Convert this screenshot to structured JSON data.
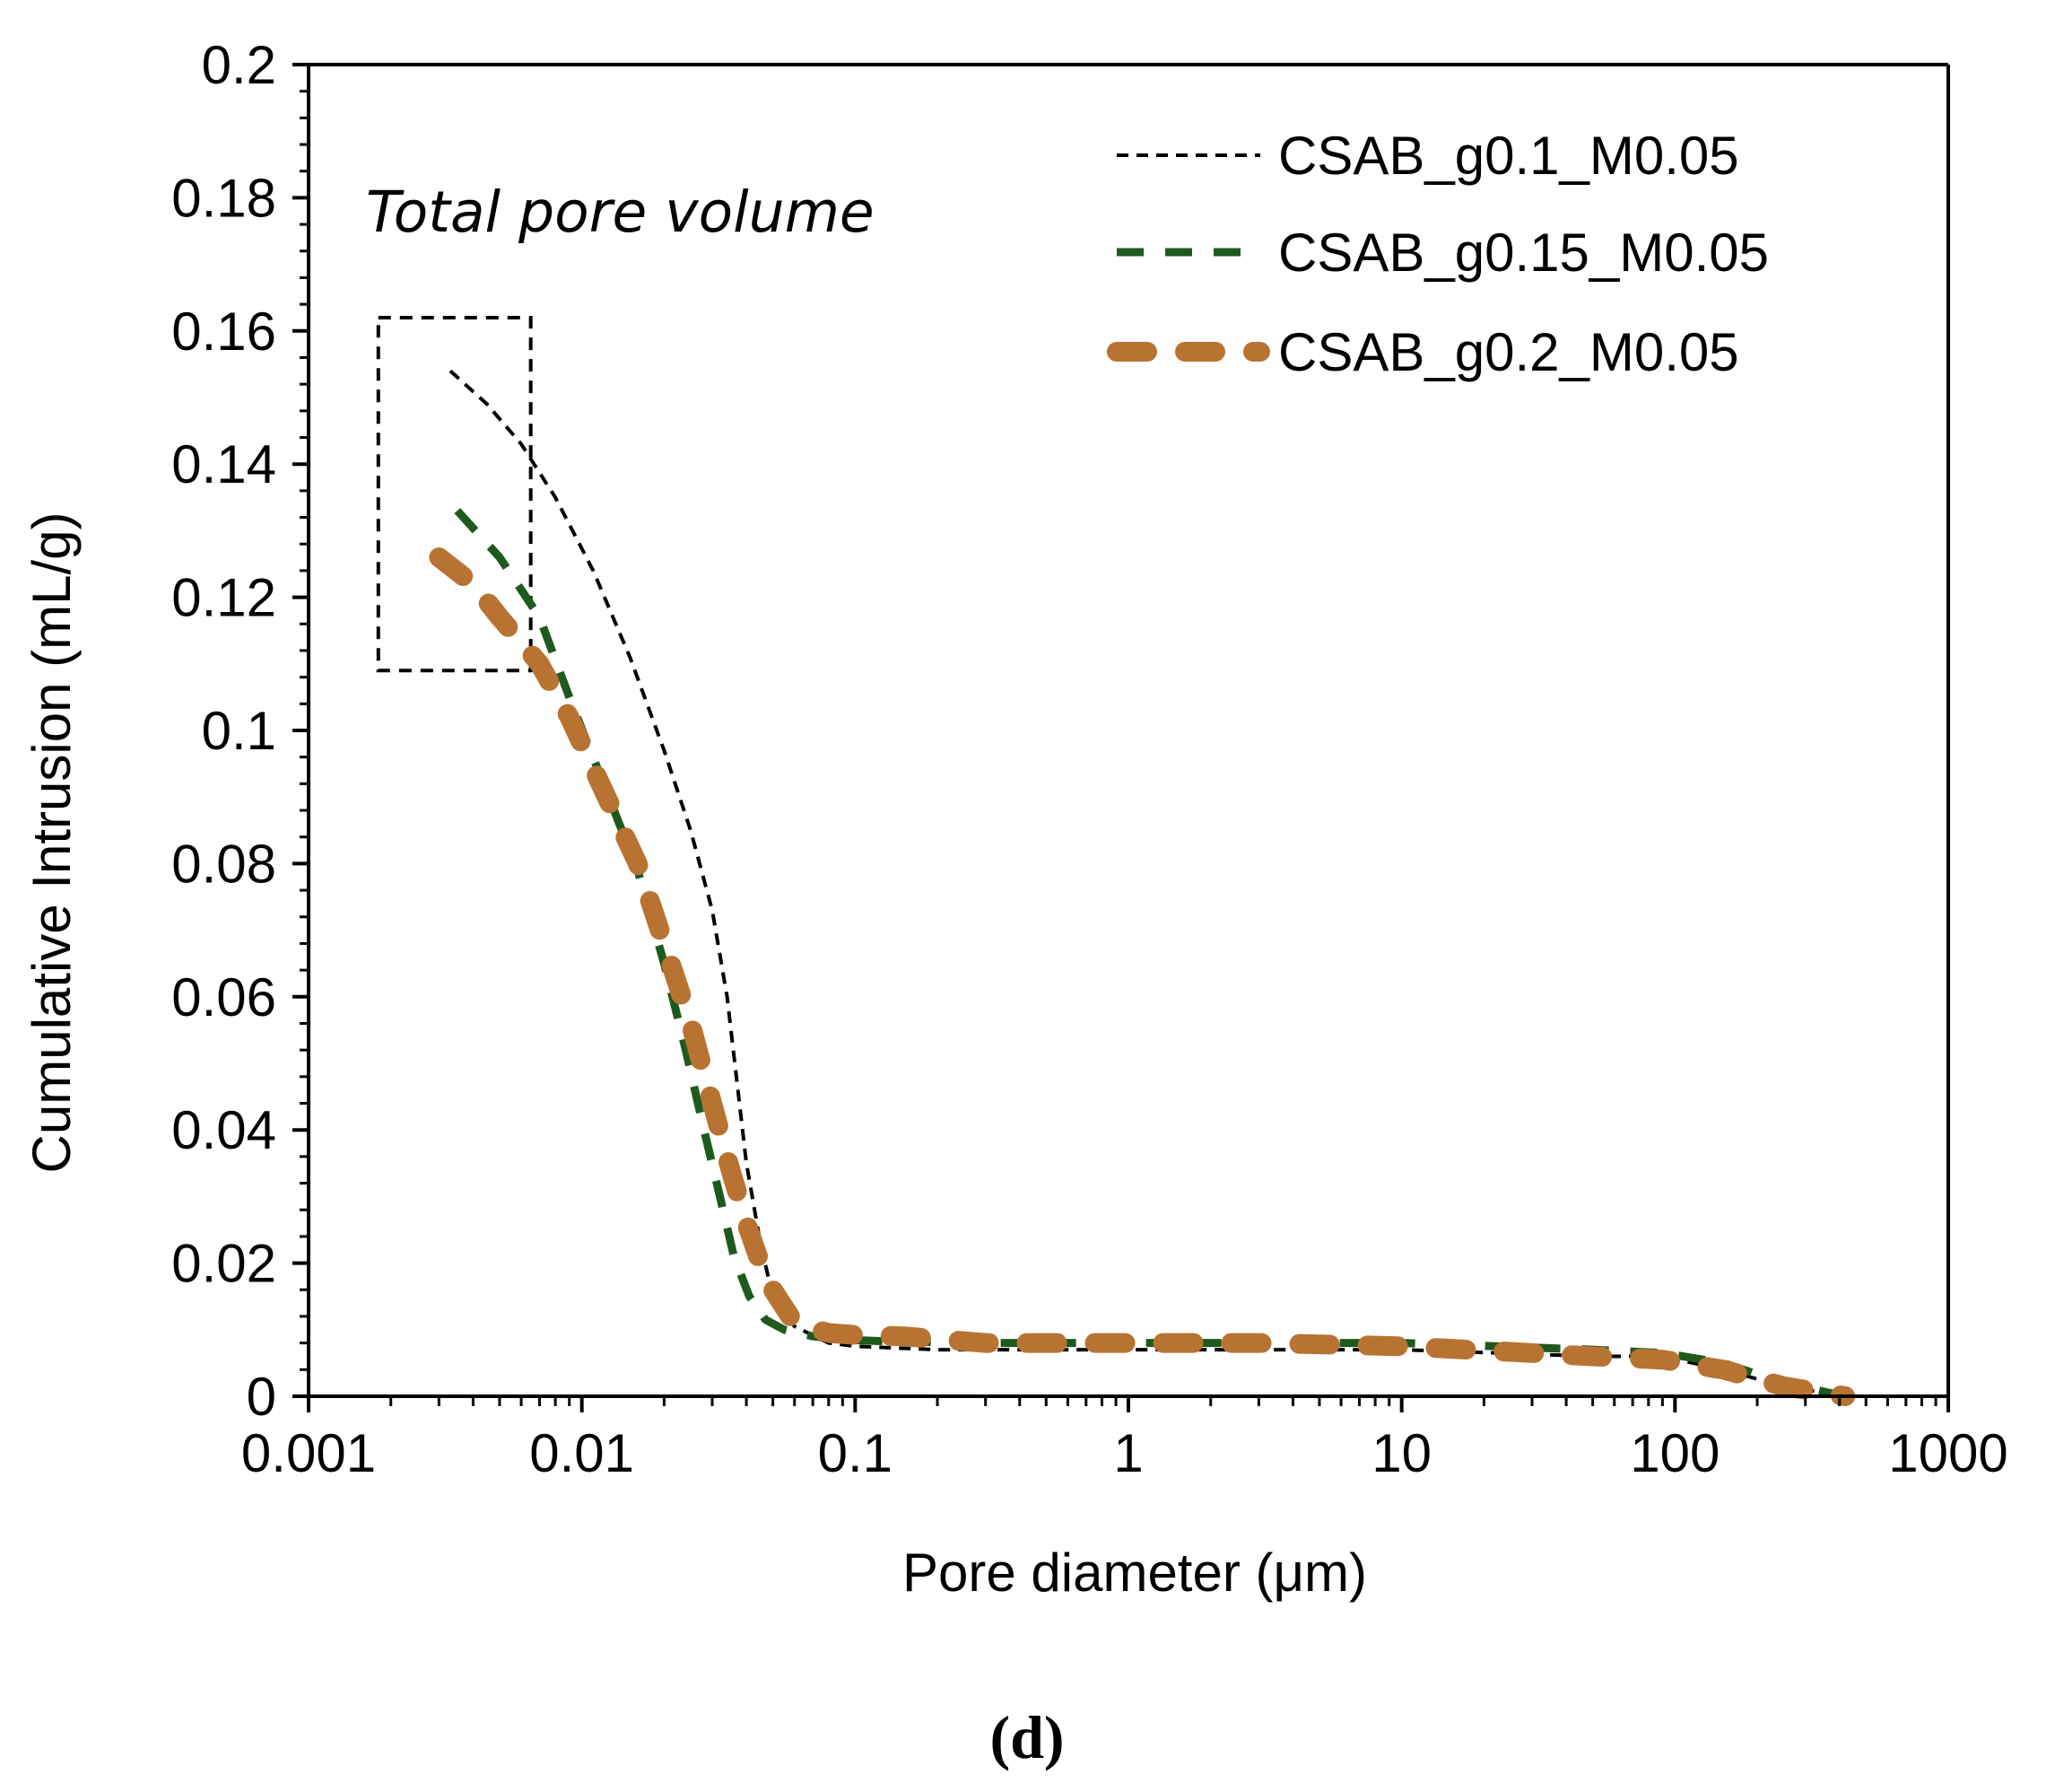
{
  "chart_data": {
    "type": "line",
    "xscale": "log",
    "xlabel": "Pore diameter (μm)",
    "ylabel": "Cumulative  Intrusion  (mL/g)",
    "xlim": [
      0.001,
      1000
    ],
    "ylim": [
      0,
      0.2
    ],
    "xticks": [
      0.001,
      0.01,
      0.1,
      1,
      10,
      100,
      1000
    ],
    "xtick_labels": [
      "0.001",
      "0.01",
      "0.1",
      "1",
      "10",
      "100",
      "1000"
    ],
    "yticks": [
      0,
      0.02,
      0.04,
      0.06,
      0.08,
      0.1,
      0.12,
      0.14,
      0.16,
      0.18,
      0.2
    ],
    "ytick_labels": [
      "0",
      "0.02",
      "0.04",
      "0.06",
      "0.08",
      "0.1",
      "0.12",
      "0.14",
      "0.16",
      "0.18",
      "0.2"
    ],
    "grid": false,
    "legend_position": "top-right",
    "annotation": "Total pore volume",
    "annotation_box": {
      "x_range": [
        0.0018,
        0.0065
      ],
      "y_range": [
        0.109,
        0.162
      ]
    },
    "series": [
      {
        "name": "CSAB_g0.1_M0.05",
        "color": "#000000",
        "style": "fine-dashed",
        "x": [
          0.0033,
          0.0045,
          0.006,
          0.008,
          0.011,
          0.015,
          0.02,
          0.025,
          0.03,
          0.034,
          0.037,
          0.04,
          0.045,
          0.05,
          0.06,
          0.08,
          0.1,
          0.2,
          0.5,
          1,
          5,
          10,
          50,
          90,
          150,
          250,
          420
        ],
        "y": [
          0.154,
          0.149,
          0.143,
          0.135,
          0.124,
          0.111,
          0.097,
          0.085,
          0.073,
          0.06,
          0.047,
          0.035,
          0.023,
          0.015,
          0.0105,
          0.008,
          0.0075,
          0.007,
          0.007,
          0.007,
          0.007,
          0.007,
          0.006,
          0.006,
          0.004,
          0.0015,
          0.0
        ]
      },
      {
        "name": "CSAB_g0.15_M0.05",
        "color": "#1e5a1e",
        "style": "dashed",
        "x": [
          0.0035,
          0.005,
          0.007,
          0.009,
          0.012,
          0.016,
          0.02,
          0.024,
          0.028,
          0.032,
          0.036,
          0.041,
          0.047,
          0.055,
          0.07,
          0.09,
          0.12,
          0.3,
          1,
          5,
          10,
          50,
          90,
          150,
          250,
          420
        ],
        "y": [
          0.133,
          0.126,
          0.117,
          0.105,
          0.092,
          0.079,
          0.065,
          0.052,
          0.04,
          0.03,
          0.021,
          0.015,
          0.0115,
          0.01,
          0.009,
          0.0085,
          0.0083,
          0.008,
          0.008,
          0.008,
          0.008,
          0.007,
          0.0065,
          0.005,
          0.002,
          0.0
        ]
      },
      {
        "name": "CSAB_g0.2_M0.05",
        "color": "#b87333",
        "style": "long-dashed",
        "x": [
          0.003,
          0.004,
          0.005,
          0.007,
          0.009,
          0.012,
          0.016,
          0.02,
          0.025,
          0.03,
          0.035,
          0.04,
          0.045,
          0.05,
          0.06,
          0.08,
          0.1,
          0.15,
          0.3,
          1,
          3,
          10,
          30,
          50,
          90,
          150,
          250,
          420
        ],
        "y": [
          0.126,
          0.122,
          0.117,
          0.11,
          0.102,
          0.091,
          0.08,
          0.068,
          0.056,
          0.044,
          0.034,
          0.026,
          0.02,
          0.016,
          0.011,
          0.0095,
          0.0092,
          0.009,
          0.008,
          0.008,
          0.008,
          0.0075,
          0.0065,
          0.006,
          0.0055,
          0.004,
          0.0015,
          0.0
        ]
      }
    ]
  },
  "panel_label": "(d)"
}
